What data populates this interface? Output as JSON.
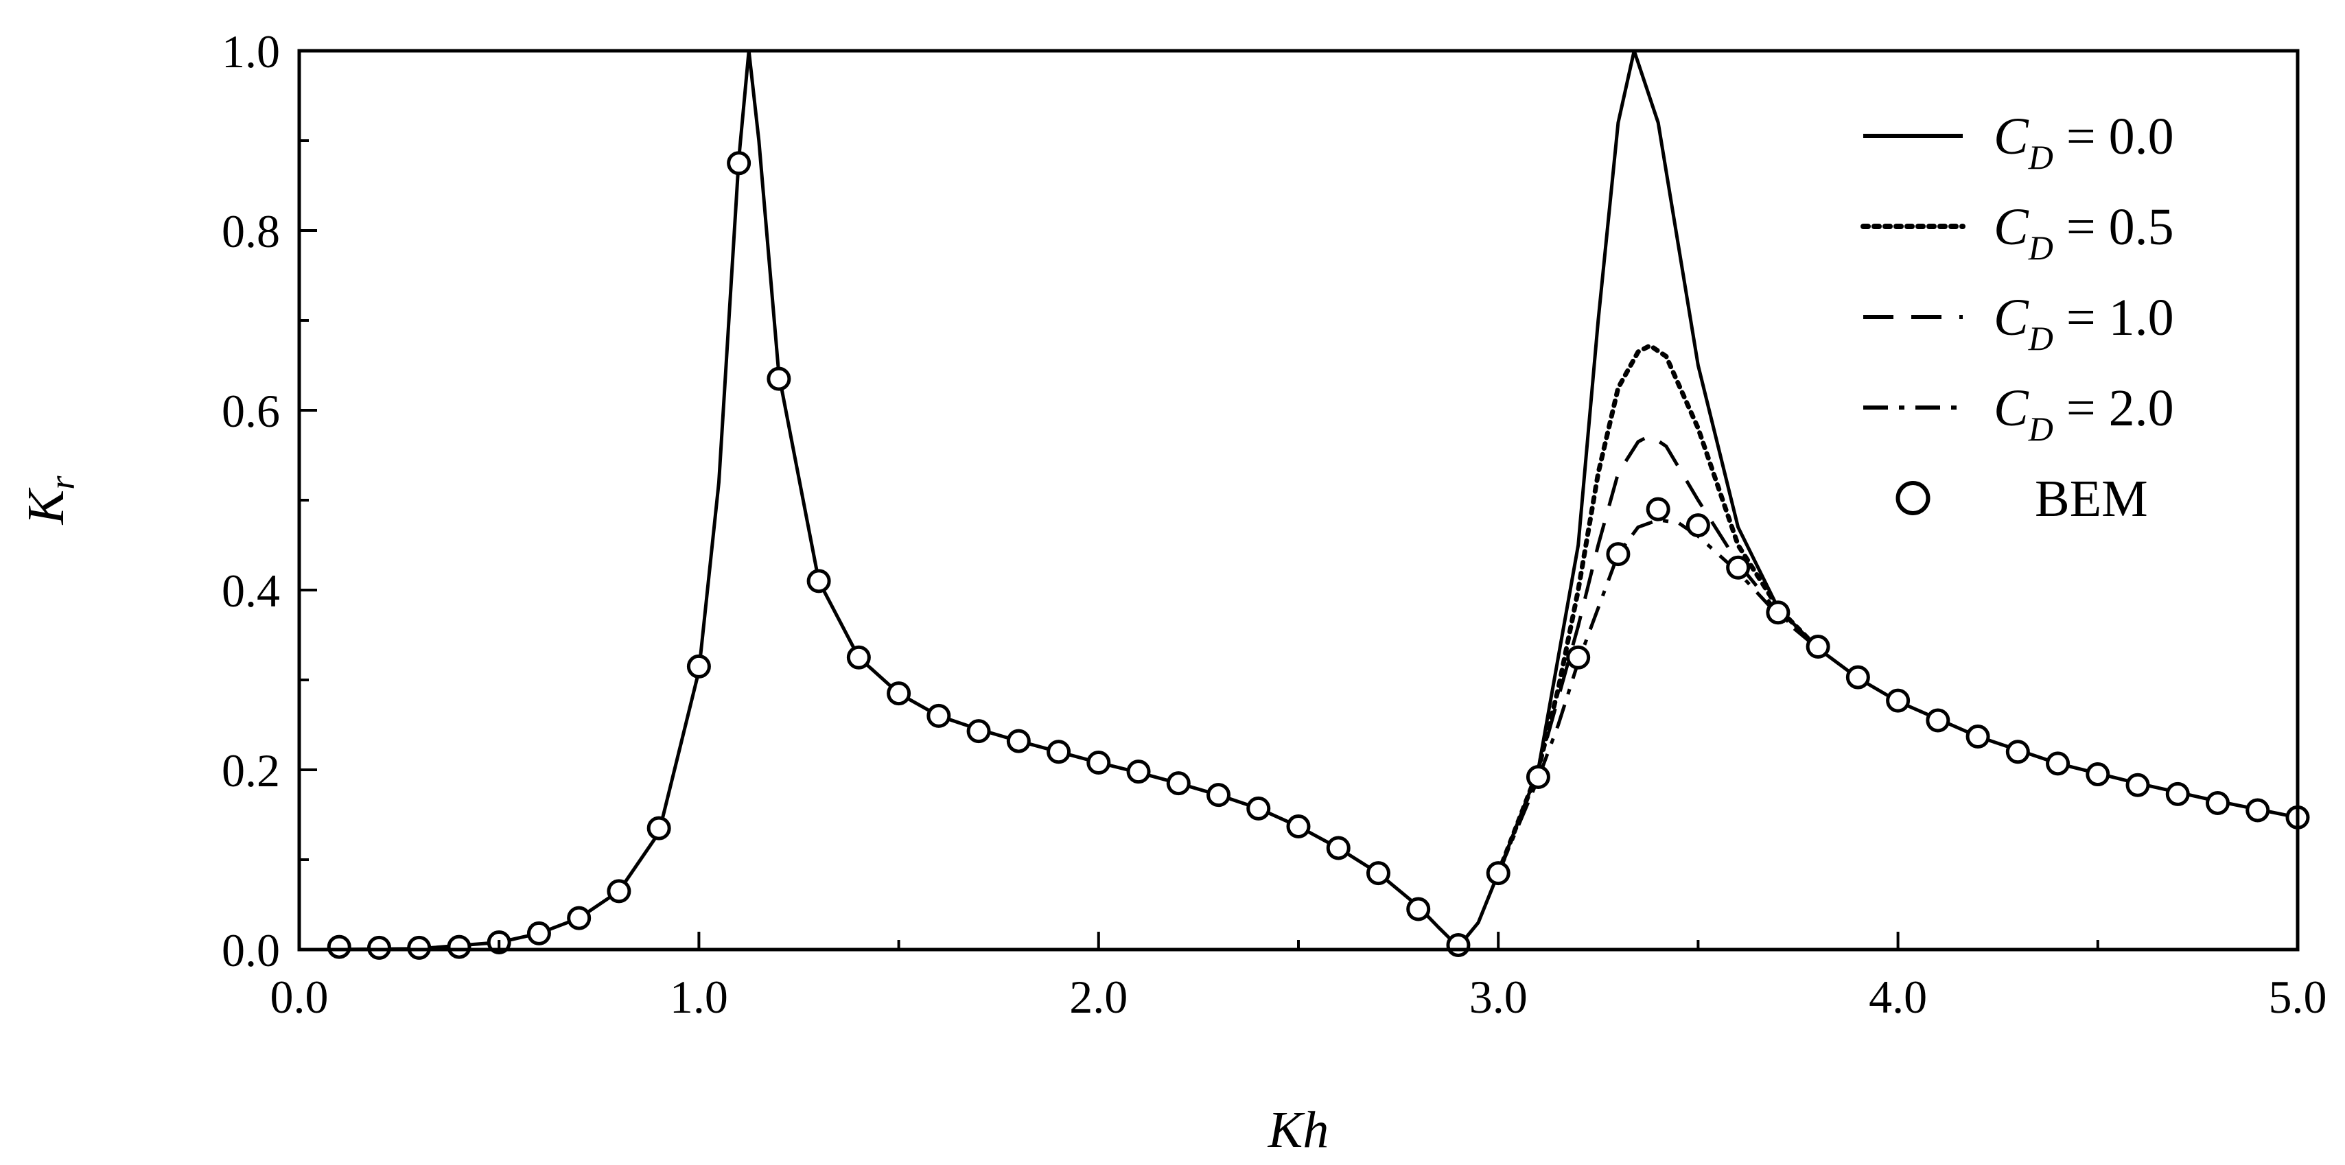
{
  "chart_data": {
    "type": "line",
    "xlabel": "Kh",
    "ylabel": "Kr",
    "xlim": [
      0.0,
      5.0
    ],
    "ylim": [
      0.0,
      1.0
    ],
    "x_ticks": [
      "0.0",
      "1.0",
      "2.0",
      "3.0",
      "4.0",
      "5.0"
    ],
    "y_ticks": [
      "0.0",
      "0.2",
      "0.4",
      "0.6",
      "0.8",
      "1.0"
    ],
    "grid": false,
    "legend": "top-right",
    "series": [
      {
        "name": "C_D = 0.0",
        "label_parts": {
          "var": "C",
          "sub": "D",
          "rest": " = 0.0"
        },
        "style": "solid",
        "points": [
          [
            0.05,
            0.0
          ],
          [
            0.3,
            0.001
          ],
          [
            0.5,
            0.008
          ],
          [
            0.6,
            0.018
          ],
          [
            0.7,
            0.035
          ],
          [
            0.8,
            0.065
          ],
          [
            0.9,
            0.13
          ],
          [
            1.0,
            0.31
          ],
          [
            1.05,
            0.52
          ],
          [
            1.1,
            0.88
          ],
          [
            1.125,
            1.0
          ],
          [
            1.15,
            0.9
          ],
          [
            1.2,
            0.64
          ],
          [
            1.3,
            0.41
          ],
          [
            1.4,
            0.325
          ],
          [
            1.5,
            0.285
          ],
          [
            1.6,
            0.26
          ],
          [
            1.7,
            0.245
          ],
          [
            1.8,
            0.232
          ],
          [
            1.9,
            0.22
          ],
          [
            2.0,
            0.208
          ],
          [
            2.1,
            0.197
          ],
          [
            2.2,
            0.185
          ],
          [
            2.3,
            0.172
          ],
          [
            2.4,
            0.157
          ],
          [
            2.5,
            0.137
          ],
          [
            2.6,
            0.113
          ],
          [
            2.7,
            0.085
          ],
          [
            2.8,
            0.048
          ],
          [
            2.85,
            0.025
          ],
          [
            2.9,
            0.003
          ],
          [
            2.95,
            0.03
          ],
          [
            3.0,
            0.085
          ],
          [
            3.1,
            0.2
          ],
          [
            3.2,
            0.45
          ],
          [
            3.25,
            0.7
          ],
          [
            3.3,
            0.92
          ],
          [
            3.34,
            1.0
          ],
          [
            3.4,
            0.92
          ],
          [
            3.5,
            0.65
          ],
          [
            3.6,
            0.47
          ],
          [
            3.7,
            0.38
          ],
          [
            3.8,
            0.335
          ],
          [
            3.9,
            0.302
          ],
          [
            4.0,
            0.276
          ],
          [
            4.2,
            0.237
          ],
          [
            4.4,
            0.207
          ],
          [
            4.6,
            0.185
          ],
          [
            4.8,
            0.165
          ],
          [
            5.0,
            0.147
          ]
        ]
      },
      {
        "name": "C_D = 0.5",
        "label_parts": {
          "var": "C",
          "sub": "D",
          "rest": " = 0.5"
        },
        "style": "dotted",
        "points": [
          [
            3.0,
            0.085
          ],
          [
            3.1,
            0.2
          ],
          [
            3.15,
            0.29
          ],
          [
            3.2,
            0.4
          ],
          [
            3.25,
            0.53
          ],
          [
            3.3,
            0.625
          ],
          [
            3.35,
            0.665
          ],
          [
            3.38,
            0.672
          ],
          [
            3.42,
            0.66
          ],
          [
            3.5,
            0.58
          ],
          [
            3.6,
            0.45
          ],
          [
            3.7,
            0.38
          ],
          [
            3.8,
            0.335
          ]
        ]
      },
      {
        "name": "C_D = 1.0",
        "label_parts": {
          "var": "C",
          "sub": "D",
          "rest": " = 1.0"
        },
        "style": "dashed",
        "points": [
          [
            3.0,
            0.085
          ],
          [
            3.1,
            0.2
          ],
          [
            3.15,
            0.28
          ],
          [
            3.2,
            0.36
          ],
          [
            3.25,
            0.45
          ],
          [
            3.3,
            0.53
          ],
          [
            3.35,
            0.565
          ],
          [
            3.38,
            0.572
          ],
          [
            3.42,
            0.56
          ],
          [
            3.5,
            0.5
          ],
          [
            3.6,
            0.43
          ],
          [
            3.7,
            0.375
          ],
          [
            3.8,
            0.335
          ]
        ]
      },
      {
        "name": "C_D = 2.0",
        "label_parts": {
          "var": "C",
          "sub": "D",
          "rest": " = 2.0"
        },
        "style": "dashdot",
        "points": [
          [
            3.0,
            0.085
          ],
          [
            3.1,
            0.19
          ],
          [
            3.15,
            0.25
          ],
          [
            3.2,
            0.32
          ],
          [
            3.25,
            0.38
          ],
          [
            3.3,
            0.44
          ],
          [
            3.35,
            0.47
          ],
          [
            3.4,
            0.478
          ],
          [
            3.45,
            0.475
          ],
          [
            3.5,
            0.46
          ],
          [
            3.6,
            0.42
          ],
          [
            3.7,
            0.372
          ],
          [
            3.8,
            0.335
          ]
        ]
      },
      {
        "name": "BEM",
        "label_parts": {
          "var": "",
          "sub": "",
          "rest": "BEM"
        },
        "style": "markers",
        "points": [
          [
            0.1,
            0.003
          ],
          [
            0.2,
            0.002
          ],
          [
            0.3,
            0.002
          ],
          [
            0.4,
            0.003
          ],
          [
            0.5,
            0.008
          ],
          [
            0.6,
            0.018
          ],
          [
            0.7,
            0.035
          ],
          [
            0.8,
            0.065
          ],
          [
            0.9,
            0.135
          ],
          [
            1.0,
            0.315
          ],
          [
            1.1,
            0.875
          ],
          [
            1.2,
            0.635
          ],
          [
            1.3,
            0.41
          ],
          [
            1.4,
            0.325
          ],
          [
            1.5,
            0.285
          ],
          [
            1.6,
            0.26
          ],
          [
            1.7,
            0.243
          ],
          [
            1.8,
            0.232
          ],
          [
            1.9,
            0.22
          ],
          [
            2.0,
            0.208
          ],
          [
            2.1,
            0.198
          ],
          [
            2.2,
            0.185
          ],
          [
            2.3,
            0.172
          ],
          [
            2.4,
            0.157
          ],
          [
            2.5,
            0.137
          ],
          [
            2.6,
            0.113
          ],
          [
            2.7,
            0.085
          ],
          [
            2.8,
            0.045
          ],
          [
            2.9,
            0.005
          ],
          [
            3.0,
            0.085
          ],
          [
            3.1,
            0.192
          ],
          [
            3.2,
            0.325
          ],
          [
            3.3,
            0.44
          ],
          [
            3.4,
            0.49
          ],
          [
            3.5,
            0.472
          ],
          [
            3.6,
            0.425
          ],
          [
            3.7,
            0.375
          ],
          [
            3.8,
            0.337
          ],
          [
            3.9,
            0.303
          ],
          [
            4.0,
            0.277
          ],
          [
            4.1,
            0.255
          ],
          [
            4.2,
            0.237
          ],
          [
            4.3,
            0.22
          ],
          [
            4.4,
            0.207
          ],
          [
            4.5,
            0.195
          ],
          [
            4.6,
            0.183
          ],
          [
            4.7,
            0.173
          ],
          [
            4.8,
            0.163
          ],
          [
            4.9,
            0.155
          ],
          [
            5.0,
            0.147
          ]
        ]
      }
    ]
  }
}
